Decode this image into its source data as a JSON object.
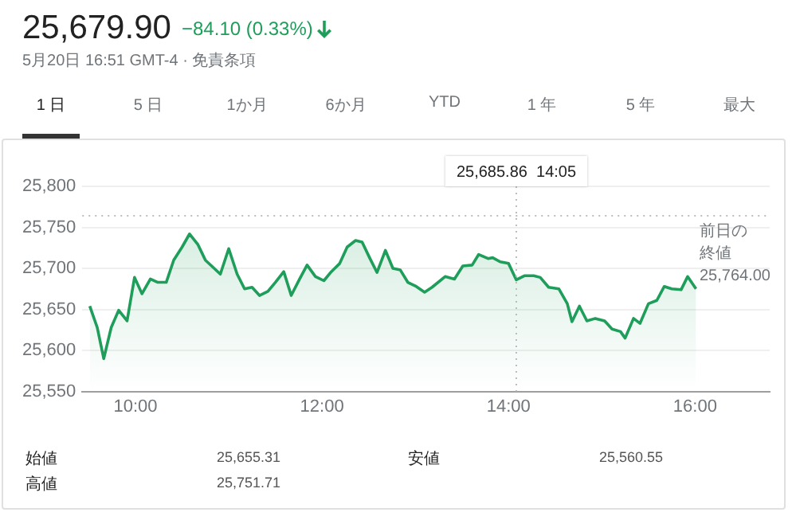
{
  "chart_data": {
    "type": "area",
    "title": "25,679.90",
    "subtitle": "−84.10 (0.33%)",
    "annotations": [
      "5月20日 16:51 GMT-4 · 免責条項",
      "1 日",
      "5 日",
      "1か月",
      "6か月",
      "YTD",
      "1 年",
      "5 年",
      "最大",
      "始値",
      "25,655.31",
      "安値",
      "25,560.55",
      "高値",
      "25,751.71"
    ],
    "x": [
      9.51,
      9.59,
      9.66,
      9.74,
      9.82,
      9.91,
      9.99,
      10.07,
      10.16,
      10.24,
      10.33,
      10.41,
      10.5,
      10.58,
      10.67,
      10.75,
      10.91,
      11.0,
      11.09,
      11.17,
      11.25,
      11.33,
      11.42,
      11.5,
      11.59,
      11.67,
      11.76,
      11.84,
      11.93,
      12.02,
      12.1,
      12.19,
      12.27,
      12.36,
      12.43,
      12.51,
      12.59,
      12.68,
      12.76,
      12.84,
      12.92,
      13.01,
      13.1,
      13.18,
      13.32,
      13.42,
      13.51,
      13.61,
      13.68,
      13.78,
      13.83,
      13.91,
      14.0,
      14.0833,
      14.17,
      14.27,
      14.34,
      14.43,
      14.54,
      14.63,
      14.68,
      14.76,
      14.84,
      14.93,
      15.03,
      15.11,
      15.2,
      15.25,
      15.34,
      15.41,
      15.5,
      15.59,
      15.67,
      15.75,
      15.85,
      15.92,
      16.01
    ],
    "series": [
      {
        "color": "#1e9e5a",
        "values": [
          25654,
          25628,
          25590,
          25628,
          25649,
          25636,
          25689,
          25669,
          25687,
          25683,
          25683,
          25710,
          25726,
          25742,
          25729,
          25710,
          25693,
          25724,
          25693,
          25675,
          25677,
          25667,
          25672,
          25683,
          25696,
          25667,
          25687,
          25704,
          25690,
          25685,
          25696,
          25706,
          25726,
          25734,
          25732,
          25713,
          25695,
          25722,
          25700,
          25698,
          25683,
          25678,
          25671,
          25677,
          25690,
          25687,
          25703,
          25704,
          25717,
          25712,
          25713,
          25708,
          25706,
          25686,
          25691,
          25691,
          25689,
          25677,
          25675,
          25657,
          25635,
          25654,
          25636,
          25639,
          25636,
          25626,
          25623,
          25615,
          25639,
          25633,
          25657,
          25661,
          25678,
          25675,
          25674,
          25690,
          25675
        ]
      }
    ],
    "xlim": [
      9.43,
      16.8
    ],
    "xticks": [
      {
        "value": 10,
        "label": "10:00"
      },
      {
        "value": 12,
        "label": "12:00"
      },
      {
        "value": 14,
        "label": "14:00"
      },
      {
        "value": 16,
        "label": "16:00"
      }
    ],
    "ylim": [
      25550,
      25800
    ],
    "yticks": [
      {
        "value": 25550,
        "label": "25,550"
      },
      {
        "value": 25600,
        "label": "25,600"
      },
      {
        "value": 25650,
        "label": "25,650"
      },
      {
        "value": 25700,
        "label": "25,700"
      },
      {
        "value": 25750,
        "label": "25,750"
      },
      {
        "value": 25800,
        "label": "25,800"
      }
    ],
    "grid": "y",
    "legend": false,
    "ref_lines": [
      {
        "axis": "x",
        "value": 14.0833,
        "label": "25,685.86  14:05",
        "color": "#bdbdbd",
        "line_style": "dotted"
      },
      {
        "axis": "y",
        "value": 25764,
        "label": "前日の終値 25,764.00",
        "color": "#bdbdbd",
        "line_style": "dotted"
      }
    ]
  }
}
